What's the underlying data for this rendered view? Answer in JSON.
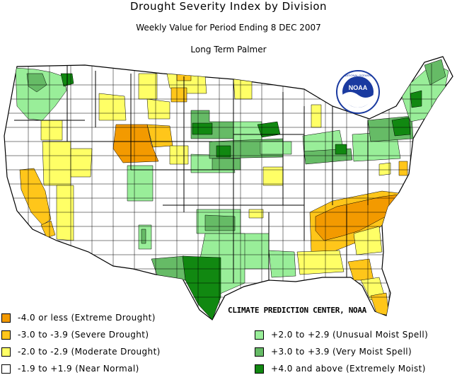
{
  "title": "Drought Severity Index by Division",
  "subtitle": "Weekly Value for Period Ending  8 DEC 2007",
  "index_name": "Long Term Palmer",
  "logo_text": "NOAA",
  "credit": "CLIMATE PREDICTION CENTER, NOAA",
  "colors": {
    "extreme_drought": "#f39a00",
    "severe_drought": "#ffc61a",
    "moderate_drought": "#ffff66",
    "near_normal": "#ffffff",
    "unusual_moist": "#99ee99",
    "very_moist": "#66bb66",
    "extremely_moist": "#118811",
    "borders": "#000000"
  },
  "legend": [
    {
      "label": "-4.0 or less (Extreme Drought)",
      "color": "#f39a00"
    },
    {
      "label": "-3.0 to -3.9 (Severe Drought)",
      "color": "#ffc61a"
    },
    {
      "label": "-2.0 to -2.9 (Moderate Drought)",
      "color": "#ffff66"
    },
    {
      "label": "-1.9 to +1.9 (Near Normal)",
      "color": "#ffffff"
    },
    {
      "label": "+2.0 to +2.9 (Unusual Moist Spell)",
      "color": "#99ee99"
    },
    {
      "label": "+3.0 to +3.9 (Very Moist Spell)",
      "color": "#66bb66"
    },
    {
      "label": "+4.0 and above (Extremely Moist)",
      "color": "#118811"
    }
  ]
}
